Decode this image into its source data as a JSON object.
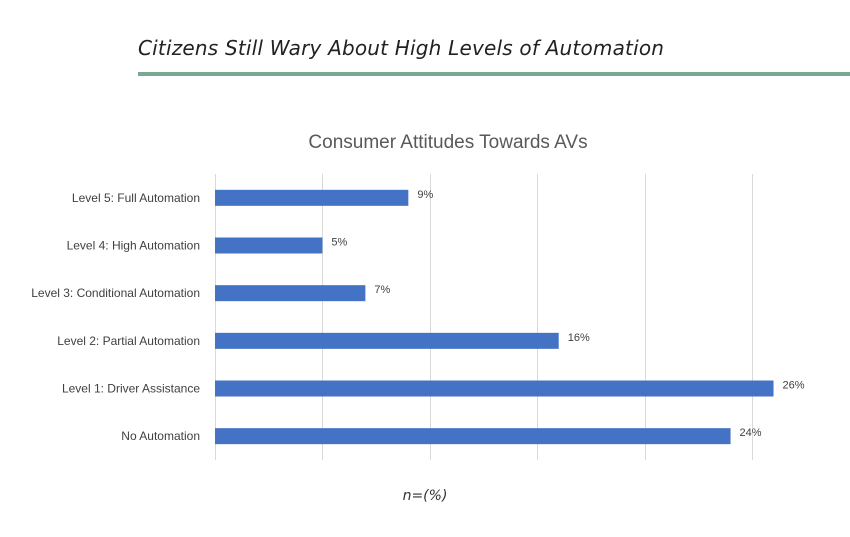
{
  "page": {
    "heading": "Citizens Still Wary About High Levels of Automation",
    "footnote": "n=(%)",
    "accent_color": "#7aa892"
  },
  "chart_data": {
    "type": "bar",
    "orientation": "horizontal",
    "title": "Consumer Attitudes Towards AVs",
    "xlabel": "",
    "ylabel": "",
    "categories": [
      "Level 5: Full Automation",
      "Level 4: High Automation",
      "Level 3: Conditional Automation",
      "Level 2: Partial Automation",
      "Level 1: Driver Assistance",
      "No Automation"
    ],
    "values": [
      9,
      5,
      7,
      16,
      26,
      24
    ],
    "data_labels": [
      "9%",
      "5%",
      "7%",
      "16%",
      "26%",
      "24%"
    ],
    "xlim": [
      0,
      27
    ],
    "grid": true,
    "legend": "none",
    "bar_color": "#4472c4",
    "gridline_color": "#d9d9d9"
  }
}
